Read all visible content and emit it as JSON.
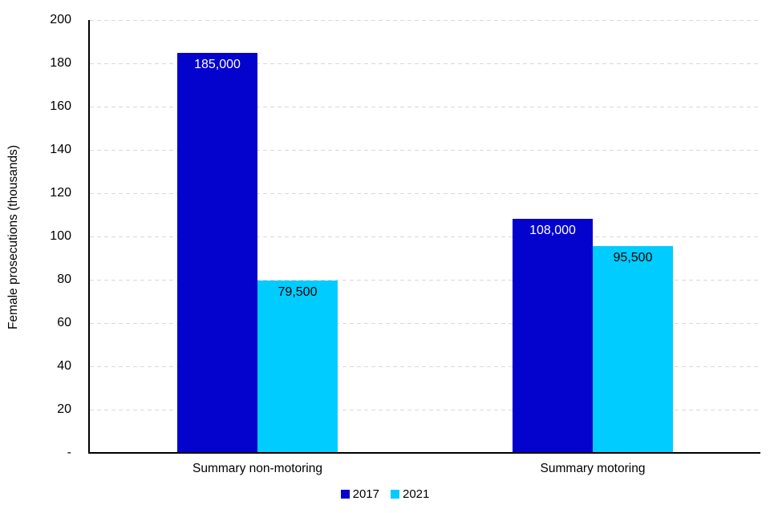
{
  "chart_data": {
    "type": "bar",
    "title": "",
    "categories": [
      "Summary non-motoring",
      "Summary motoring"
    ],
    "series": [
      {
        "name": "2017",
        "values_thousands": [
          185,
          108
        ],
        "values": [
          185000,
          108000
        ],
        "data_labels": [
          "185,000",
          "108,000"
        ],
        "color": "#0402CD",
        "data_label_color": "#ffffff"
      },
      {
        "name": "2021",
        "values_thousands": [
          79.5,
          95.5
        ],
        "values": [
          79500,
          95500
        ],
        "data_labels": [
          "79,500",
          "95,500"
        ],
        "color": "#00CCFF",
        "data_label_color": "#000000"
      }
    ],
    "xlabel": "",
    "ylabel": "Female prosecutions (thousands)",
    "ylim": [
      0,
      200
    ],
    "yticks": [
      {
        "value": 0,
        "label": "-"
      },
      {
        "value": 20,
        "label": "20"
      },
      {
        "value": 40,
        "label": "40"
      },
      {
        "value": 60,
        "label": "60"
      },
      {
        "value": 80,
        "label": "80"
      },
      {
        "value": 100,
        "label": "100"
      },
      {
        "value": 120,
        "label": "120"
      },
      {
        "value": 140,
        "label": "140"
      },
      {
        "value": 160,
        "label": "160"
      },
      {
        "value": 180,
        "label": "180"
      },
      {
        "value": 200,
        "label": "200"
      }
    ],
    "grid": "horizontal-dashed",
    "legend_position": "bottom"
  },
  "colors": {
    "gridline": "#d9d9d9",
    "axis": "#000000",
    "text": "#000000",
    "background": "#ffffff"
  }
}
